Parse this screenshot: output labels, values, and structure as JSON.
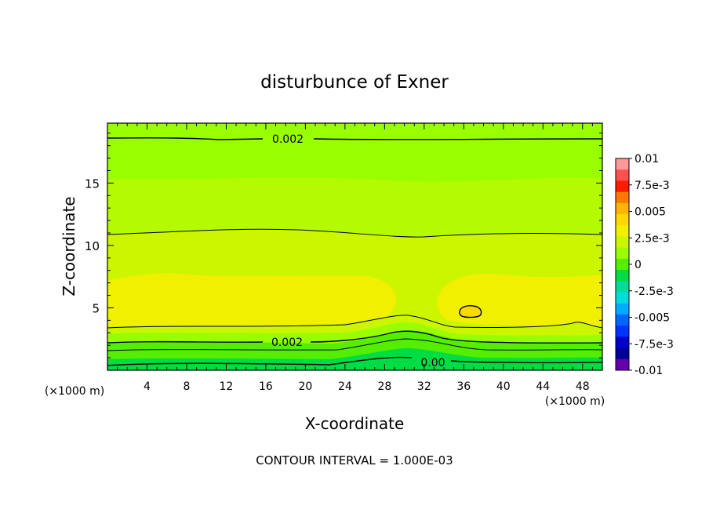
{
  "chart_data": {
    "type": "contour",
    "title": "disturbunce of Exner",
    "xlabel": "X-coordinate",
    "ylabel": "Z-coordinate",
    "x_unit_left": "(×1000 m)",
    "x_unit_right": "(×1000 m)",
    "xlim": [
      0,
      50
    ],
    "ylim": [
      0,
      19.8
    ],
    "x_ticks": [
      4,
      8,
      12,
      16,
      20,
      24,
      28,
      32,
      36,
      40,
      44,
      48
    ],
    "y_ticks": [
      5,
      10,
      15
    ],
    "contour_interval": 0.001,
    "footer": "CONTOUR INTERVAL = 1.000E-03",
    "contour_labels": [
      {
        "text": "0.002",
        "x": 17,
        "z": 18.7
      },
      {
        "text": "0.002",
        "x": 17,
        "z": 2.3
      },
      {
        "text": "0.00",
        "x": 32,
        "z": 0.6
      }
    ],
    "colorbar": {
      "labels": [
        "0.01",
        "7.5e-3",
        "0.005",
        "2.5e-3",
        "0",
        "-2.5e-3",
        "-0.005",
        "-7.5e-3",
        "-0.01"
      ],
      "colors": [
        "#ff9999",
        "#ff5050",
        "#ff1a00",
        "#ff7a00",
        "#ffb400",
        "#ffd800",
        "#f0f000",
        "#ccf500",
        "#99ff00",
        "#55ee00",
        "#00dd44",
        "#00dd99",
        "#00dddd",
        "#00aaff",
        "#0066ff",
        "#0033ff",
        "#0000cc",
        "#000099",
        "#6600aa"
      ]
    },
    "field_bands": [
      {
        "level": "3e-3 to 4e-3",
        "color": "#f0f000"
      },
      {
        "level": "2e-3 to 3e-3",
        "color": "#ccf500"
      },
      {
        "level": "1e-3 to 2e-3",
        "color": "#99ff00"
      },
      {
        "level": "0 to 1e-3",
        "color": "#55ee00"
      },
      {
        "level": "-1e-3 to 0",
        "color": "#00dd44"
      }
    ]
  }
}
